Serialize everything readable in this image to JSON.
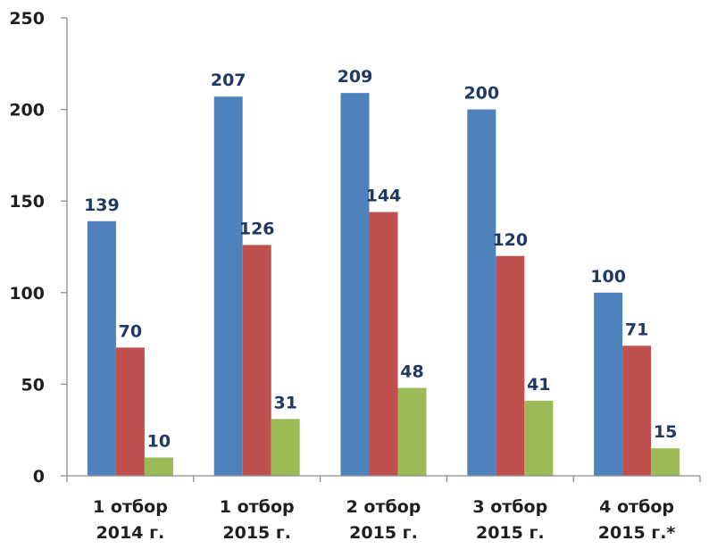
{
  "chart_data": {
    "type": "bar",
    "categories": [
      [
        "1 отбор",
        "2014 г."
      ],
      [
        "1 отбор",
        "2015 г."
      ],
      [
        "2 отбор",
        "2015 г."
      ],
      [
        "3 отбор",
        "2015 г."
      ],
      [
        "4 отбор",
        "2015 г.*"
      ]
    ],
    "series": [
      {
        "values": [
          139,
          207,
          209,
          200,
          100
        ],
        "color": "#4f81bd"
      },
      {
        "values": [
          70,
          126,
          144,
          120,
          71
        ],
        "color": "#c0504d"
      },
      {
        "values": [
          10,
          31,
          48,
          41,
          15
        ],
        "color": "#9bbb59"
      }
    ],
    "ylim": [
      0,
      250
    ],
    "yticks": [
      0,
      50,
      100,
      150,
      200,
      250
    ],
    "grid": false,
    "legend": "none"
  }
}
